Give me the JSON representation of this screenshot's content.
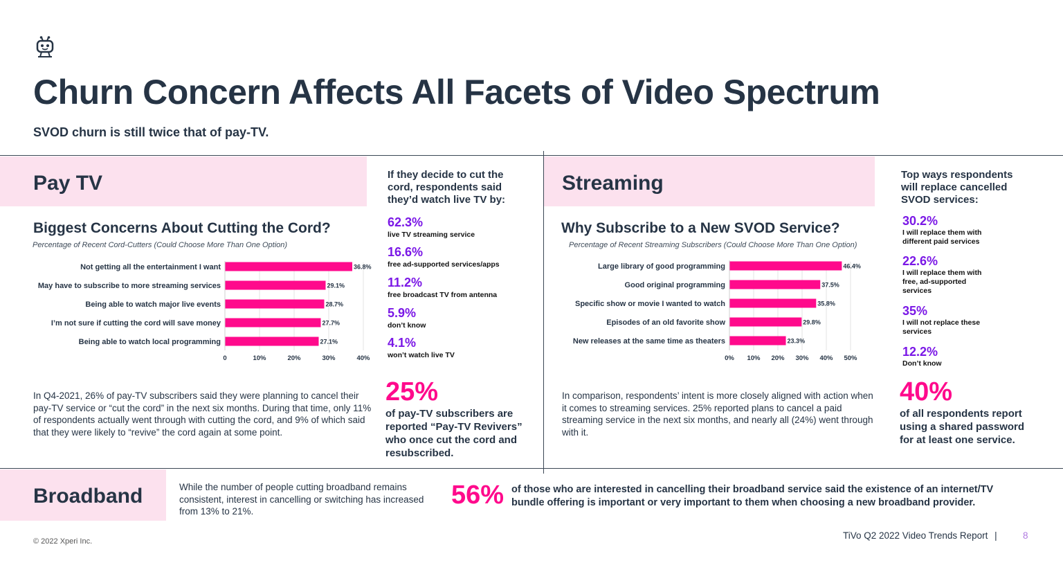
{
  "header": {
    "logo_icon": "tivo-robot-icon",
    "title": "Churn Concern Affects All Facets of Video Spectrum",
    "subtitle": "SVOD churn is still twice that of pay-TV."
  },
  "colors": {
    "accent_pink": "#ff0a8c",
    "accent_purple": "#7a17e6",
    "band_pink": "#fce1ee",
    "navy": "#263445"
  },
  "paytv": {
    "label": "Pay TV",
    "chart_title": "Biggest Concerns About Cutting the Cord?",
    "chart_note": "Percentage of Recent Cord-Cutters (Could Choose More Than One Option)",
    "stats_heading": "If they decide to cut the cord, respondents said they’d watch live TV by:",
    "stats": [
      {
        "pct": "62.3%",
        "desc": "live TV streaming service"
      },
      {
        "pct": "16.6%",
        "desc": "free ad-supported services/apps"
      },
      {
        "pct": "11.2%",
        "desc": "free broadcast TV from antenna"
      },
      {
        "pct": "5.9%",
        "desc": "don’t know"
      },
      {
        "pct": "4.1%",
        "desc": "won’t watch live TV"
      }
    ],
    "big_pct": "25%",
    "big_desc": "of pay-TV subscribers are reported “Pay-TV Revivers” who once cut the cord and resubscribed.",
    "paragraph": "In Q4-2021, 26% of pay-TV subscribers said they were planning to cancel their pay-TV service or “cut the cord” in the next six months. During that time, only 11% of respondents actually went through with cutting the cord, and 9% of which said that they were likely to “revive” the cord again at some point."
  },
  "streaming": {
    "label": "Streaming",
    "chart_title": "Why Subscribe to a New SVOD Service?",
    "chart_note": "Percentage of Recent Streaming Subscribers (Could Choose More Than One Option)",
    "stats_heading": "Top ways respondents will replace cancelled SVOD services:",
    "stats": [
      {
        "pct": "30.2%",
        "desc": "I will replace them with different paid services"
      },
      {
        "pct": "22.6%",
        "desc": "I will replace them with free, ad-supported services"
      },
      {
        "pct": "35%",
        "desc": "I will not replace these services"
      },
      {
        "pct": "12.2%",
        "desc": "Don’t know"
      }
    ],
    "big_pct": "40%",
    "big_desc": "of all respondents report using a shared password for at least one service.",
    "paragraph": "In comparison, respondents’ intent is more closely aligned with action when it comes to streaming services. 25% reported plans to cancel a paid streaming service in the next six months, and nearly all (24%) went through with it."
  },
  "broadband": {
    "label": "Broadband",
    "text": "While the number of people cutting broadband remains consistent, interest in cancelling or switching has increased from 13% to 21%.",
    "big_pct": "56%",
    "big_desc": "of those who are interested in cancelling their broadband service said the existence of an internet/TV bundle offering is important or very important to them when choosing a new broadband provider."
  },
  "footer": {
    "copyright": "© 2022 Xperi Inc.",
    "report": "TiVo Q2 2022 Video Trends Report",
    "separator": "|",
    "page": "8"
  },
  "chart_data": [
    {
      "type": "bar",
      "orientation": "horizontal",
      "title": "Biggest Concerns About Cutting the Cord?",
      "categories": [
        "Not getting all the entertainment I want",
        "May have to subscribe to more streaming services",
        "Being able to watch major live events",
        "I’m not sure if cutting the cord will save money",
        "Being able to watch local programming"
      ],
      "values": [
        36.8,
        29.1,
        28.7,
        27.7,
        27.1
      ],
      "value_labels": [
        "36.8%",
        "29.1%",
        "28.7%",
        "27.7%",
        "27.1%"
      ],
      "xlim": [
        0,
        40
      ],
      "ticks": [
        0,
        10,
        20,
        30,
        40
      ],
      "tick_labels": [
        "0",
        "10%",
        "20%",
        "30%",
        "40%"
      ],
      "grid": true
    },
    {
      "type": "bar",
      "orientation": "horizontal",
      "title": "Why Subscribe to a New SVOD Service?",
      "categories": [
        "Large library of good programming",
        "Good original programming",
        "Specific show or movie I wanted to watch",
        "Episodes of an old favorite show",
        "New releases at the same time as theaters"
      ],
      "values": [
        46.4,
        37.5,
        35.8,
        29.8,
        23.3
      ],
      "value_labels": [
        "46.4%",
        "37.5%",
        "35.8%",
        "29.8%",
        "23.3%"
      ],
      "xlim": [
        0,
        50
      ],
      "ticks": [
        0,
        10,
        20,
        30,
        40,
        50
      ],
      "tick_labels": [
        "0%",
        "10%",
        "20%",
        "30%",
        "40%",
        "50%"
      ],
      "grid": true
    }
  ]
}
